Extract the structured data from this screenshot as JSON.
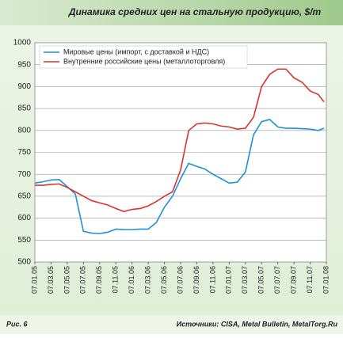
{
  "chart_data": {
    "type": "line",
    "title": "Динамика средних цен на стальную продукцию, $/т",
    "figure_label": "Рис. 6",
    "source": "Источники: CISA, Metal Bulletin, MetalTorg.Ru",
    "x": [
      0,
      1,
      2,
      3,
      4,
      5,
      6,
      7,
      8,
      9,
      10,
      11,
      12,
      13,
      14,
      15,
      16,
      17,
      18,
      19,
      20,
      21,
      22,
      23,
      24,
      25,
      26,
      27,
      28,
      29,
      30,
      31,
      32,
      33,
      34,
      35,
      35.7
    ],
    "series": [
      {
        "name": "Мировые цены (импорт, с доставкой и НДС)",
        "color": "#1f8fd8",
        "values": [
          680,
          683,
          687,
          688,
          672,
          655,
          570,
          566,
          565,
          568,
          575,
          574,
          574,
          575,
          575,
          590,
          625,
          650,
          690,
          725,
          718,
          712,
          700,
          690,
          680,
          682,
          705,
          790,
          820,
          825,
          808,
          805,
          805,
          804,
          803,
          800,
          805
        ]
      },
      {
        "name": "Внутренние российские цены (металлоторговля)",
        "color": "#d9332b",
        "values": [
          675,
          675,
          677,
          678,
          670,
          660,
          650,
          640,
          635,
          630,
          622,
          615,
          620,
          622,
          628,
          638,
          650,
          660,
          710,
          800,
          815,
          817,
          815,
          810,
          808,
          803,
          805,
          830,
          900,
          928,
          940,
          940,
          920,
          910,
          890,
          882,
          865
        ]
      }
    ],
    "xlim": [
      0,
      36
    ],
    "xticks": [
      {
        "value": 0,
        "label": "07.01.05"
      },
      {
        "value": 2,
        "label": "07.03.05"
      },
      {
        "value": 4,
        "label": "07.05.05"
      },
      {
        "value": 6,
        "label": "07.07.05"
      },
      {
        "value": 8,
        "label": "07.09.05"
      },
      {
        "value": 10,
        "label": "07.11.05"
      },
      {
        "value": 12,
        "label": "07.01.06"
      },
      {
        "value": 14,
        "label": "07.03.06"
      },
      {
        "value": 16,
        "label": "07.05.06"
      },
      {
        "value": 18,
        "label": "07.07.06"
      },
      {
        "value": 20,
        "label": "07.09.06"
      },
      {
        "value": 22,
        "label": "07.11.06"
      },
      {
        "value": 24,
        "label": "07.01.07"
      },
      {
        "value": 26,
        "label": "07.03.07"
      },
      {
        "value": 28,
        "label": "07.05.07"
      },
      {
        "value": 30,
        "label": "07.07.07"
      },
      {
        "value": 32,
        "label": "07.09.07"
      },
      {
        "value": 34,
        "label": "07.11.07"
      },
      {
        "value": 36,
        "label": "07.01.08"
      }
    ],
    "ylim": [
      500,
      1000
    ],
    "yticks": [
      500,
      550,
      600,
      650,
      700,
      750,
      800,
      850,
      900,
      950,
      1000
    ],
    "grid": true,
    "legend": "upper left"
  }
}
